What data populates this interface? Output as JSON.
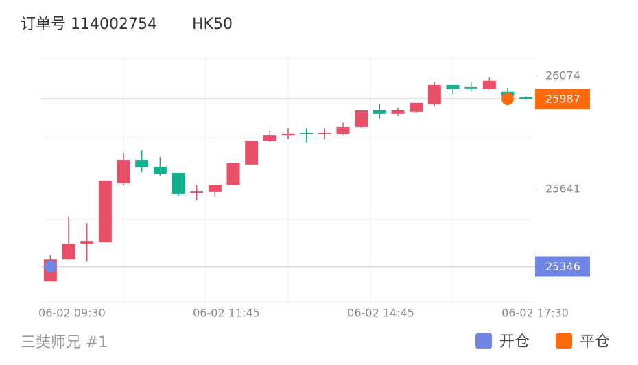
{
  "header": {
    "order_label": "订单号 114002754",
    "symbol": "HK50"
  },
  "footer": {
    "author": "三奘师兄 #1"
  },
  "chart_data": {
    "type": "candlestick",
    "up_color": "#e8506a",
    "down_color": "#13b08f",
    "open": [
      25289,
      25373,
      25434,
      25439,
      25665,
      25754,
      25728,
      25704,
      25628,
      25631,
      25657,
      25736,
      25825,
      25848,
      25856,
      25854,
      25851,
      25880,
      25943,
      25930,
      25938,
      25966,
      26040,
      26032,
      26024,
      26014,
      25993
    ],
    "high": [
      25389,
      25536,
      25512,
      25673,
      25780,
      25791,
      25764,
      25704,
      25657,
      25659,
      25743,
      25827,
      25864,
      25875,
      25875,
      25875,
      25896,
      25943,
      25966,
      25953,
      25972,
      26050,
      26040,
      26050,
      26071,
      26029,
      25996
    ],
    "low": [
      25289,
      25373,
      25366,
      25439,
      25657,
      25709,
      25694,
      25617,
      25599,
      25612,
      25657,
      25736,
      25822,
      25833,
      25822,
      25833,
      25848,
      25877,
      25911,
      25922,
      25935,
      25959,
      26006,
      26014,
      26022,
      25982,
      25984
    ],
    "close": [
      25373,
      25434,
      25444,
      25673,
      25754,
      25725,
      25701,
      25623,
      25633,
      25659,
      25743,
      25827,
      25848,
      25854,
      25854,
      25856,
      25880,
      25943,
      25930,
      25943,
      25972,
      26040,
      26024,
      26027,
      26056,
      25998,
      25987
    ],
    "x_labels": [
      "06-02 09:30",
      "06-02 11:45",
      "06-02 14:45",
      "06-02 17:30"
    ],
    "ylim": [
      25211,
      26142
    ],
    "yticks": [
      25641,
      26074
    ],
    "markers": [
      {
        "name": "开仓",
        "color": "#6f87e2",
        "index": 0,
        "value": 25346
      },
      {
        "name": "平仓",
        "color": "#ff6a0a",
        "index": 25,
        "value": 25987
      }
    ]
  }
}
